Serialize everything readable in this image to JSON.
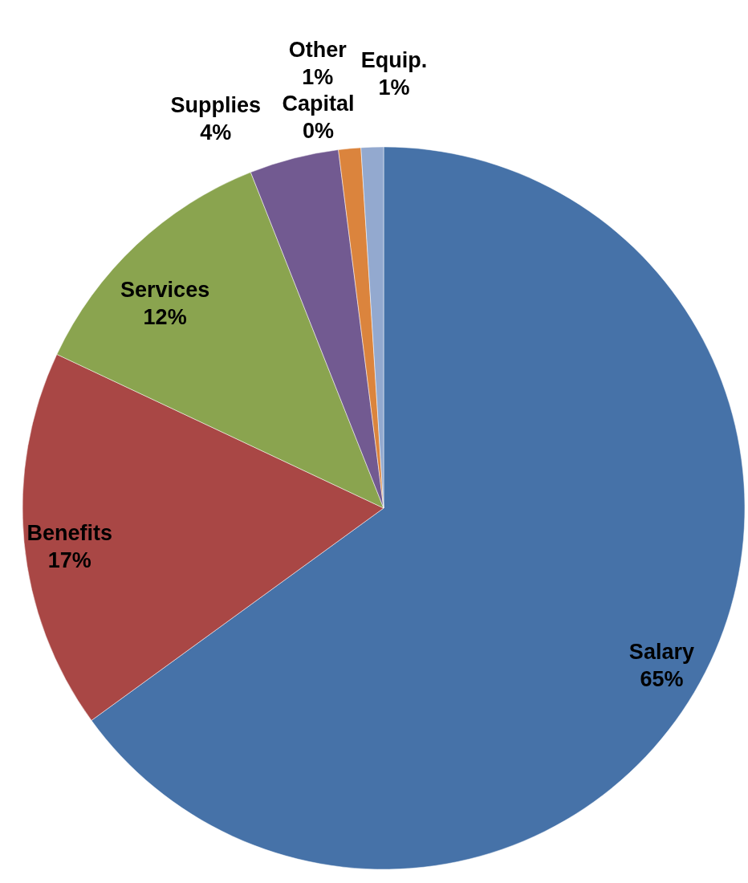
{
  "chart_data": {
    "type": "pie",
    "categories": [
      "Salary",
      "Benefits",
      "Services",
      "Supplies",
      "Capital",
      "Other",
      "Equip."
    ],
    "values": [
      65,
      17,
      12,
      4,
      0,
      1,
      1
    ],
    "value_labels": [
      "65%",
      "17%",
      "12%",
      "4%",
      "0%",
      "1%",
      "1%"
    ],
    "colors": [
      "#4672a8",
      "#a94745",
      "#8aa44f",
      "#725a91",
      "#3e93ad",
      "#db843d",
      "#93a9cf"
    ]
  }
}
